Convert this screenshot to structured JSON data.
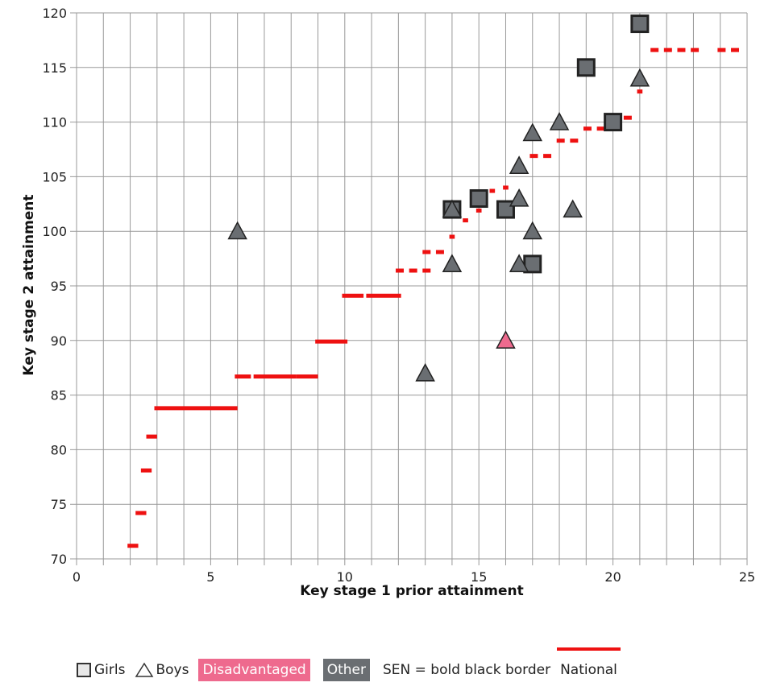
{
  "chart_data": {
    "type": "scatter",
    "title": "",
    "xlabel": "Key stage 1 prior attainment",
    "ylabel": "Key stage 2 attainment",
    "xlim": [
      0,
      25
    ],
    "ylim": [
      70,
      120
    ],
    "xticks": [
      0,
      5,
      10,
      15,
      20,
      25
    ],
    "yticks": [
      70,
      75,
      80,
      85,
      90,
      95,
      100,
      105,
      110,
      115,
      120
    ],
    "grid": true,
    "legend_position": "bottom",
    "colors": {
      "national": "#ee1111",
      "disadvantaged": "#ee6a8e",
      "other": "#6a6e72",
      "girls_marker_fill": "#e8e8e8",
      "border": "#222222"
    },
    "series": [
      {
        "name": "Girls",
        "marker": "square",
        "points": [
          {
            "x": 14,
            "y": 102,
            "group": "Other",
            "sen": true
          },
          {
            "x": 15,
            "y": 103,
            "group": "Other",
            "sen": true
          },
          {
            "x": 16,
            "y": 102,
            "group": "Other",
            "sen": true
          },
          {
            "x": 17,
            "y": 97,
            "group": "Other",
            "sen": true
          },
          {
            "x": 19,
            "y": 115,
            "group": "Other",
            "sen": true
          },
          {
            "x": 20,
            "y": 110,
            "group": "Other",
            "sen": true
          },
          {
            "x": 21,
            "y": 119,
            "group": "Other",
            "sen": true
          }
        ]
      },
      {
        "name": "Boys",
        "marker": "triangle",
        "points": [
          {
            "x": 6,
            "y": 100,
            "group": "Other",
            "sen": false
          },
          {
            "x": 13,
            "y": 87,
            "group": "Other",
            "sen": false
          },
          {
            "x": 14,
            "y": 97,
            "group": "Other",
            "sen": false
          },
          {
            "x": 14,
            "y": 102,
            "group": "Other",
            "sen": false
          },
          {
            "x": 16,
            "y": 90,
            "group": "Disadvantaged",
            "sen": false
          },
          {
            "x": 16.5,
            "y": 97,
            "group": "Other",
            "sen": false
          },
          {
            "x": 16.5,
            "y": 103,
            "group": "Other",
            "sen": false
          },
          {
            "x": 16.5,
            "y": 106,
            "group": "Other",
            "sen": false
          },
          {
            "x": 17,
            "y": 100,
            "group": "Other",
            "sen": false
          },
          {
            "x": 17,
            "y": 109,
            "group": "Other",
            "sen": false
          },
          {
            "x": 18,
            "y": 110,
            "group": "Other",
            "sen": false
          },
          {
            "x": 18.5,
            "y": 102,
            "group": "Other",
            "sen": false
          },
          {
            "x": 21,
            "y": 114,
            "group": "Other",
            "sen": false
          }
        ]
      },
      {
        "name": "National",
        "marker": "segment",
        "segments": [
          {
            "x0": 1.9,
            "x1": 2.3,
            "y": 71.2
          },
          {
            "x0": 2.2,
            "x1": 2.6,
            "y": 74.2
          },
          {
            "x0": 2.4,
            "x1": 2.8,
            "y": 78.1
          },
          {
            "x0": 2.6,
            "x1": 3.0,
            "y": 81.2
          },
          {
            "x0": 2.9,
            "x1": 6.0,
            "y": 83.8
          },
          {
            "x0": 5.9,
            "x1": 6.5,
            "y": 86.7
          },
          {
            "x0": 6.6,
            "x1": 8.2,
            "y": 86.7
          },
          {
            "x0": 8.2,
            "x1": 9.0,
            "y": 86.7
          },
          {
            "x0": 8.9,
            "x1": 10.1,
            "y": 89.9
          },
          {
            "x0": 9.9,
            "x1": 10.7,
            "y": 94.1
          },
          {
            "x0": 10.8,
            "x1": 12.1,
            "y": 94.1
          },
          {
            "x0": 11.9,
            "x1": 12.2,
            "y": 96.4
          },
          {
            "x0": 12.4,
            "x1": 12.7,
            "y": 96.4
          },
          {
            "x0": 12.9,
            "x1": 13.2,
            "y": 96.4
          },
          {
            "x0": 12.9,
            "x1": 13.2,
            "y": 98.1
          },
          {
            "x0": 13.4,
            "x1": 13.7,
            "y": 98.1
          },
          {
            "x0": 13.9,
            "x1": 14.1,
            "y": 99.5
          },
          {
            "x0": 14.4,
            "x1": 14.6,
            "y": 101
          },
          {
            "x0": 14.9,
            "x1": 15.1,
            "y": 101.9
          },
          {
            "x0": 15.4,
            "x1": 15.6,
            "y": 103.7
          },
          {
            "x0": 15.9,
            "x1": 16.1,
            "y": 104
          },
          {
            "x0": 16.9,
            "x1": 17.2,
            "y": 106.9
          },
          {
            "x0": 17.4,
            "x1": 17.7,
            "y": 106.9
          },
          {
            "x0": 17.9,
            "x1": 18.2,
            "y": 108.3
          },
          {
            "x0": 18.4,
            "x1": 18.7,
            "y": 108.3
          },
          {
            "x0": 18.9,
            "x1": 19.2,
            "y": 109.4
          },
          {
            "x0": 19.4,
            "x1": 19.7,
            "y": 109.4
          },
          {
            "x0": 20.4,
            "x1": 20.7,
            "y": 110.4
          },
          {
            "x0": 20.9,
            "x1": 21.1,
            "y": 112.8
          },
          {
            "x0": 21.4,
            "x1": 21.7,
            "y": 116.6
          },
          {
            "x0": 21.9,
            "x1": 22.2,
            "y": 116.6
          },
          {
            "x0": 22.4,
            "x1": 22.7,
            "y": 116.6
          },
          {
            "x0": 22.9,
            "x1": 23.2,
            "y": 116.6
          },
          {
            "x0": 23.9,
            "x1": 24.2,
            "y": 116.6
          },
          {
            "x0": 24.4,
            "x1": 24.7,
            "y": 116.6
          }
        ]
      }
    ]
  },
  "legend": {
    "girls": "Girls",
    "boys": "Boys",
    "disadvantaged": "Disadvantaged",
    "other": "Other",
    "sen_note": "SEN = bold black border",
    "national": "National"
  }
}
